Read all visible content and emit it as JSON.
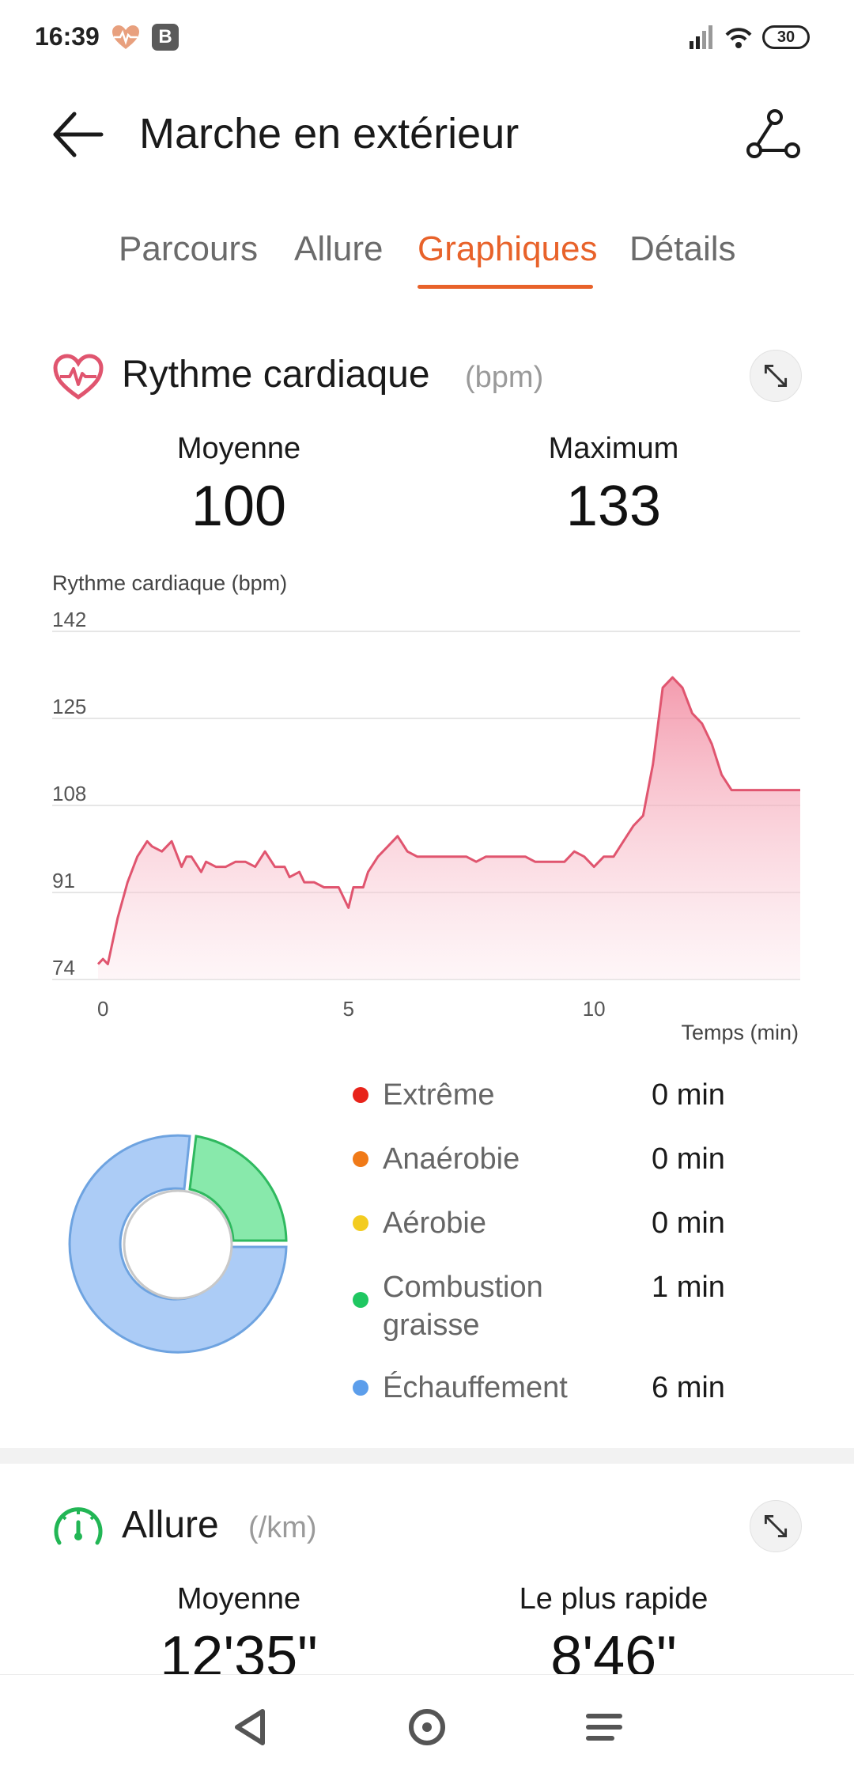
{
  "status_bar": {
    "time": "16:39",
    "badge_letter": "B",
    "battery": "30",
    "icons": [
      "heart-rate-icon",
      "signal-icon",
      "wifi-icon",
      "battery-icon"
    ]
  },
  "header": {
    "title": "Marche en extérieur",
    "icons": [
      "back-arrow-icon",
      "route-icon"
    ]
  },
  "tabs": [
    {
      "label": "Parcours"
    },
    {
      "label": "Allure"
    },
    {
      "label": "Graphiques",
      "active": true
    },
    {
      "label": "Détails"
    }
  ],
  "heart_rate": {
    "title": "Rythme cardiaque",
    "unit": "(bpm)",
    "avg_label": "Moyenne",
    "avg_value": "100",
    "max_label": "Maximum",
    "max_value": "133",
    "accent_color": "#e0556f"
  },
  "zones": [
    {
      "name": "Extrême",
      "value": "0 min",
      "color": "#e8231a"
    },
    {
      "name": "Anaérobie",
      "value": "0 min",
      "color": "#f07a18"
    },
    {
      "name": "Aérobie",
      "value": "0 min",
      "color": "#f3cc20"
    },
    {
      "name": "Combustion graisse",
      "value": "1 min",
      "color": "#1fc761"
    },
    {
      "name": "Échauffement",
      "value": "6 min",
      "color": "#5c9eeb"
    }
  ],
  "pace": {
    "title": "Allure",
    "unit": "(/km)",
    "avg_label": "Moyenne",
    "avg_value": "12'35\"",
    "fast_label": "Le plus rapide",
    "fast_value": "8'46\""
  },
  "chart_data": {
    "type": "area",
    "ylabel": "Rythme cardiaque (bpm)",
    "xlabel": "Temps (min)",
    "y_ticks": [
      142,
      125,
      108,
      91,
      74
    ],
    "x_ticks": [
      0,
      5,
      10
    ],
    "ylim": [
      74,
      142
    ],
    "xlim": [
      -0.1,
      14.2
    ],
    "grid": true,
    "series": [
      {
        "color": "#e0556f",
        "x": [
          -0.1,
          0.0,
          0.1,
          0.3,
          0.5,
          0.7,
          0.9,
          1.0,
          1.2,
          1.4,
          1.6,
          1.7,
          1.8,
          2.0,
          2.1,
          2.3,
          2.5,
          2.7,
          2.9,
          3.1,
          3.3,
          3.5,
          3.7,
          3.8,
          4.0,
          4.1,
          4.3,
          4.5,
          4.6,
          4.8,
          5.0,
          5.1,
          5.3,
          5.4,
          5.6,
          5.8,
          6.0,
          6.2,
          6.4,
          6.6,
          6.8,
          7.0,
          7.2,
          7.4,
          7.6,
          7.8,
          8.0,
          8.2,
          8.4,
          8.6,
          8.8,
          9.0,
          9.2,
          9.4,
          9.6,
          9.8,
          10.0,
          10.2,
          10.4,
          10.6,
          10.8,
          11.0,
          11.2,
          11.4,
          11.6,
          11.8,
          12.0,
          12.2,
          12.4,
          12.6,
          12.8,
          13.0,
          13.2,
          13.4,
          13.6,
          13.8,
          14.0,
          14.2
        ],
        "values": [
          77,
          78,
          77,
          86,
          93,
          98,
          101,
          100,
          99,
          101,
          96,
          98,
          98,
          95,
          97,
          96,
          96,
          97,
          97,
          96,
          99,
          96,
          96,
          94,
          95,
          93,
          93,
          92,
          92,
          92,
          88,
          92,
          92,
          95,
          98,
          100,
          102,
          99,
          98,
          98,
          98,
          98,
          98,
          98,
          97,
          98,
          98,
          98,
          98,
          98,
          97,
          97,
          97,
          97,
          99,
          98,
          96,
          98,
          98,
          101,
          104,
          106,
          116,
          131,
          133,
          131,
          126,
          124,
          120,
          114,
          111,
          111,
          111,
          111,
          111,
          111,
          111,
          111
        ]
      }
    ]
  }
}
